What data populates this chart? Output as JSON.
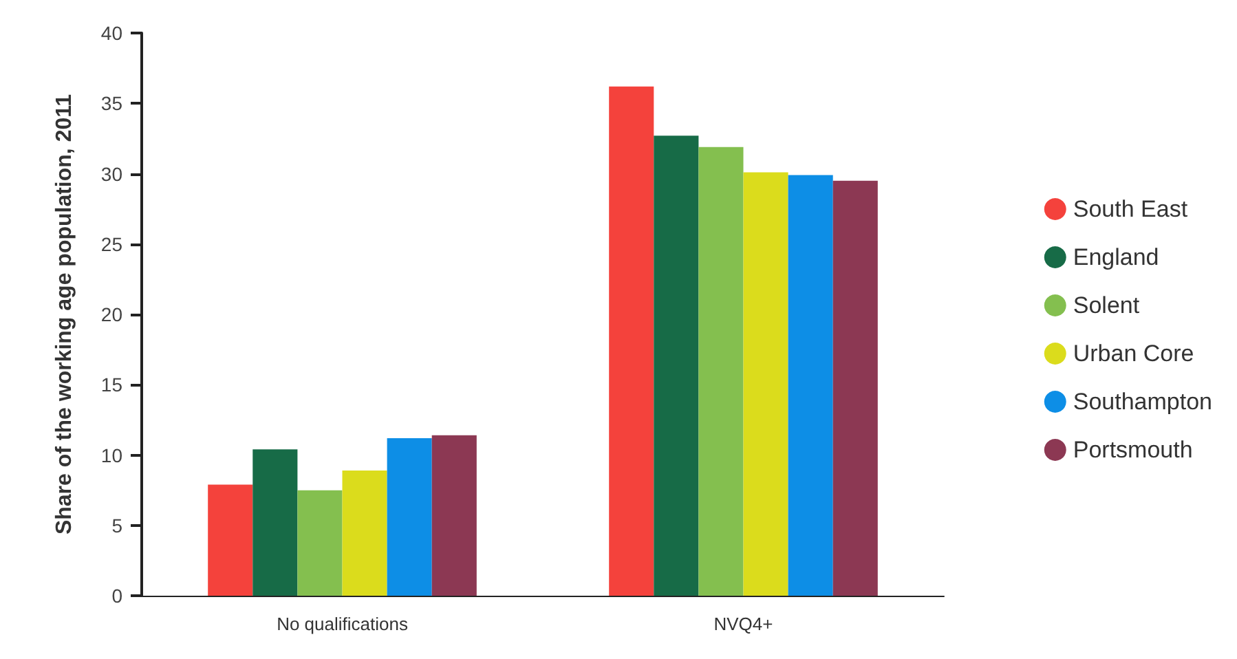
{
  "chart_data": {
    "type": "bar",
    "ylabel": "Share of the working age population, 2011",
    "categories": [
      "No qualifications",
      "NVQ4+"
    ],
    "series": [
      {
        "name": "South East",
        "color": "#f4423c",
        "values": [
          7.9,
          36.2
        ]
      },
      {
        "name": "England",
        "color": "#176b47",
        "values": [
          10.4,
          32.7
        ]
      },
      {
        "name": "Solent",
        "color": "#84bf4f",
        "values": [
          7.5,
          31.9
        ]
      },
      {
        "name": "Urban Core",
        "color": "#dbdc1c",
        "values": [
          8.9,
          30.1
        ]
      },
      {
        "name": "Southampton",
        "color": "#0d8ee6",
        "values": [
          11.2,
          29.9
        ]
      },
      {
        "name": "Portsmouth",
        "color": "#8c3853",
        "values": [
          11.4,
          29.5
        ]
      }
    ],
    "ylim": [
      0,
      40
    ],
    "yticks": [
      0,
      5,
      10,
      15,
      20,
      25,
      30,
      35,
      40
    ],
    "grid": false,
    "legend": "right"
  }
}
